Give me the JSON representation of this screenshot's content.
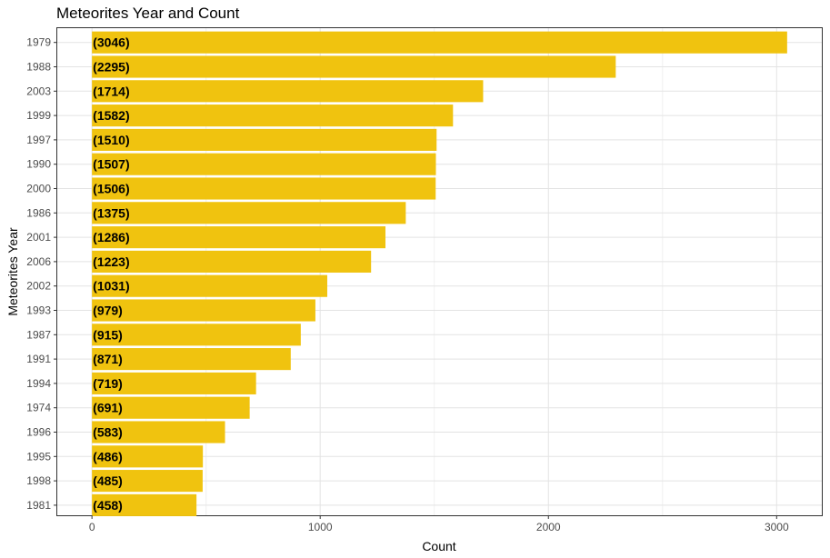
{
  "chart_data": {
    "type": "bar",
    "orientation": "horizontal",
    "title": "Meteorites Year and Count",
    "xlabel": "Count",
    "ylabel": "Meteorites Year",
    "categories": [
      "1979",
      "1988",
      "2003",
      "1999",
      "1997",
      "1990",
      "2000",
      "1986",
      "2001",
      "2006",
      "2002",
      "1993",
      "1987",
      "1991",
      "1994",
      "1974",
      "1996",
      "1995",
      "1998",
      "1981"
    ],
    "values": [
      3046,
      2295,
      1714,
      1582,
      1510,
      1507,
      1506,
      1375,
      1286,
      1223,
      1031,
      979,
      915,
      871,
      719,
      691,
      583,
      486,
      485,
      458
    ],
    "data_labels": [
      "(3046)",
      "(2295)",
      "(1714)",
      "(1582)",
      "(1510)",
      "(1507)",
      "(1506)",
      "(1375)",
      "(1286)",
      "(1223)",
      "(1031)",
      "(979)",
      "(915)",
      "(871)",
      "(719)",
      "(691)",
      "(583)",
      "(486)",
      "(485)",
      "(458)"
    ],
    "x_ticks": [
      0,
      1000,
      2000,
      3000
    ],
    "xlim": [
      -152,
      3198
    ],
    "grid": true,
    "bar_color": "#f0c30f"
  }
}
